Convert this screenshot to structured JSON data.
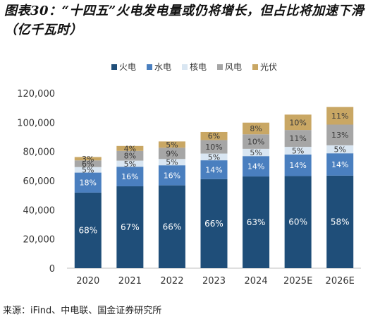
{
  "title": "图表30：“十四五”火电发电量或仍将增长，但占比将加速下滑（亿千瓦时）",
  "source": "来源：iFind、中电联、国金证券研究所",
  "chart_data": {
    "type": "bar",
    "stacked": true,
    "title": "图表30：“十四五”火电发电量或仍将增长，但占比将加速下滑（亿千瓦时）",
    "categories": [
      "2020",
      "2021",
      "2022",
      "2023",
      "2024",
      "2025E",
      "2026E"
    ],
    "ylim": [
      0,
      120000
    ],
    "yticks": [
      "0",
      "20,000",
      "40,000",
      "60,000",
      "80,000",
      "100,000",
      "120,000"
    ],
    "totals": [
      76200,
      83800,
      86900,
      93400,
      99800,
      105300,
      110500
    ],
    "legend_position": "top-center",
    "grid": false,
    "series": [
      {
        "name": "火电",
        "color": "#1f4e79",
        "pct": [
          68,
          67,
          66,
          66,
          63,
          60,
          58
        ],
        "labels": [
          "68%",
          "67%",
          "66%",
          "66%",
          "63%",
          "60%",
          "58%"
        ]
      },
      {
        "name": "水电",
        "color": "#4a7fbf",
        "pct": [
          18,
          16,
          16,
          14,
          14,
          14,
          14
        ],
        "labels": [
          "18%",
          "16%",
          "16%",
          "14%",
          "14%",
          "14%",
          "14%"
        ]
      },
      {
        "name": "核电",
        "color": "#d9e6f2",
        "pct": [
          5,
          5,
          5,
          5,
          5,
          5,
          5
        ],
        "labels": [
          "5%",
          "5%",
          "5%",
          "5%",
          "5%",
          "5%",
          "5%"
        ]
      },
      {
        "name": "风电",
        "color": "#a6a6a6",
        "pct": [
          6,
          8,
          9,
          10,
          10,
          11,
          13
        ],
        "labels": [
          "6%",
          "8%",
          "9%",
          "10%",
          "10%",
          "11%",
          "13%"
        ]
      },
      {
        "name": "光伏",
        "color": "#c9a764",
        "pct": [
          3,
          4,
          5,
          6,
          8,
          10,
          11
        ],
        "labels": [
          "3%",
          "4%",
          "5%",
          "6%",
          "8%",
          "10%",
          "11%"
        ]
      }
    ]
  }
}
